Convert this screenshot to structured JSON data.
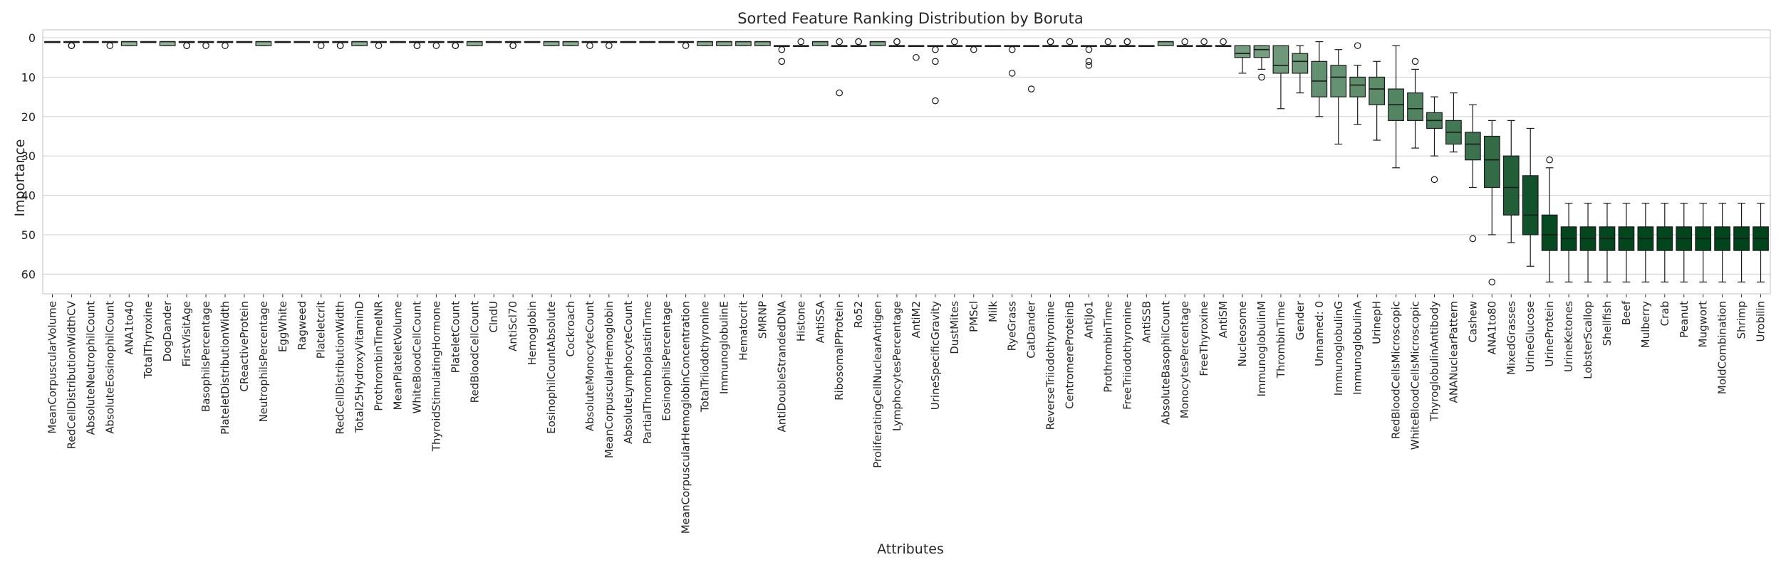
{
  "chart_data": {
    "type": "box",
    "title": "Sorted Feature Ranking Distribution by Boruta",
    "xlabel": "Attributes",
    "ylabel": "Importance",
    "ylim": [
      65,
      -2
    ],
    "y_inverted": true,
    "yticks": [
      0,
      10,
      20,
      30,
      40,
      50,
      60
    ],
    "grid": "horizontal",
    "color_scale": [
      "#e5f5e0",
      "#00441b"
    ],
    "categories": [
      "MeanCorpuscularVolume",
      "RedCellDistributionWidthCV",
      "AbsoluteNeutrophilCount",
      "AbsoluteEosinophilCount",
      "ANA1to40",
      "TotalThyroxine",
      "DogDander",
      "FirstVisitAge",
      "BasophilsPercentage",
      "PlateletDistributionWidth",
      "CReactiveProtein",
      "NeutrophilsPercentage",
      "EggWhite",
      "Ragweed",
      "Plateletcrit",
      "RedCellDistributionWidth",
      "Total25HydroxyVitaminD",
      "ProthrombinTimeINR",
      "MeanPlateletVolume",
      "WhiteBloodCellCount",
      "ThyroidStimulatingHormone",
      "PlateletCount",
      "RedBloodCellCount",
      "ClndU",
      "AntiScl70",
      "Hemoglobin",
      "EosinophilCountAbsolute",
      "Cockroach",
      "AbsoluteMonocyteCount",
      "MeanCorpuscularHemoglobin",
      "AbsoluteLymphocyteCount",
      "PartialThromboplastinTime",
      "EosinophilsPercentage",
      "MeanCorpuscularHemoglobinConcentration",
      "TotalTriiodothyronine",
      "ImmunoglobulinE",
      "Hematocrit",
      "SMRNP",
      "AntiDoubleStrandedDNA",
      "Histone",
      "AntiSSA",
      "RibosomalPProtein",
      "Ro52",
      "ProliferatingCellNuclearAntigen",
      "LymphocytesPercentage",
      "AntiM2",
      "UrineSpecificGravity",
      "DustMites",
      "PMScl",
      "Milk",
      "RyeGrass",
      "CatDander",
      "ReverseTriiodothyronine",
      "CentromereProteinB",
      "AntiJo1",
      "ProthrombinTime",
      "FreeTriiodothyronine",
      "AntiSSB",
      "AbsoluteBasophilCount",
      "MonocytesPercentage",
      "FreeThyroxine",
      "AntiSM",
      "Nucleosome",
      "ImmunoglobulinM",
      "ThrombinTime",
      "Gender",
      "Unnamed: 0",
      "ImmunoglobulinG",
      "ImmunoglobulinA",
      "UrinepH",
      "RedBloodCellsMicroscopic",
      "WhiteBloodCellsMicroscopic",
      "ThyroglobulinAntibody",
      "ANANuclearPattern",
      "Cashew",
      "ANA1to80",
      "MixedGrasses",
      "UrineGlucose",
      "UrineProtein",
      "UrineKetones",
      "LobsterScallop",
      "Shellfish",
      "Beef",
      "Mulberry",
      "Crab",
      "Peanut",
      "Mugwort",
      "MoldCombination",
      "Shrimp",
      "Urobilin"
    ],
    "boxes": [
      {
        "q1": 1,
        "med": 1,
        "q3": 1,
        "wl": 1,
        "wh": 1,
        "out": []
      },
      {
        "q1": 1,
        "med": 1,
        "q3": 1,
        "wl": 1,
        "wh": 1,
        "out": [
          2,
          2,
          2
        ]
      },
      {
        "q1": 1,
        "med": 1,
        "q3": 1,
        "wl": 1,
        "wh": 1,
        "out": []
      },
      {
        "q1": 1,
        "med": 1,
        "q3": 1,
        "wl": 1,
        "wh": 1,
        "out": [
          2
        ]
      },
      {
        "q1": 1,
        "med": 1,
        "q3": 2,
        "wl": 1,
        "wh": 2,
        "out": []
      },
      {
        "q1": 1,
        "med": 1,
        "q3": 1,
        "wl": 1,
        "wh": 1,
        "out": []
      },
      {
        "q1": 1,
        "med": 1,
        "q3": 2,
        "wl": 1,
        "wh": 2,
        "out": []
      },
      {
        "q1": 1,
        "med": 1,
        "q3": 1,
        "wl": 1,
        "wh": 1,
        "out": [
          2,
          2
        ]
      },
      {
        "q1": 1,
        "med": 1,
        "q3": 1,
        "wl": 1,
        "wh": 1,
        "out": [
          2
        ]
      },
      {
        "q1": 1,
        "med": 1,
        "q3": 1,
        "wl": 1,
        "wh": 1,
        "out": [
          2
        ]
      },
      {
        "q1": 1,
        "med": 1,
        "q3": 1,
        "wl": 1,
        "wh": 1,
        "out": []
      },
      {
        "q1": 1,
        "med": 1,
        "q3": 2,
        "wl": 1,
        "wh": 2,
        "out": []
      },
      {
        "q1": 1,
        "med": 1,
        "q3": 1,
        "wl": 1,
        "wh": 1,
        "out": []
      },
      {
        "q1": 1,
        "med": 1,
        "q3": 1,
        "wl": 1,
        "wh": 1,
        "out": []
      },
      {
        "q1": 1,
        "med": 1,
        "q3": 1,
        "wl": 1,
        "wh": 1,
        "out": [
          2
        ]
      },
      {
        "q1": 1,
        "med": 1,
        "q3": 1,
        "wl": 1,
        "wh": 1,
        "out": [
          2,
          2
        ]
      },
      {
        "q1": 1,
        "med": 1,
        "q3": 2,
        "wl": 1,
        "wh": 2,
        "out": []
      },
      {
        "q1": 1,
        "med": 1,
        "q3": 1,
        "wl": 1,
        "wh": 1,
        "out": [
          2
        ]
      },
      {
        "q1": 1,
        "med": 1,
        "q3": 1,
        "wl": 1,
        "wh": 1,
        "out": []
      },
      {
        "q1": 1,
        "med": 1,
        "q3": 1,
        "wl": 1,
        "wh": 1,
        "out": [
          2,
          2
        ]
      },
      {
        "q1": 1,
        "med": 1,
        "q3": 1,
        "wl": 1,
        "wh": 1,
        "out": [
          2
        ]
      },
      {
        "q1": 1,
        "med": 1,
        "q3": 1,
        "wl": 1,
        "wh": 1,
        "out": [
          2,
          2
        ]
      },
      {
        "q1": 1,
        "med": 1,
        "q3": 2,
        "wl": 1,
        "wh": 2,
        "out": []
      },
      {
        "q1": 1,
        "med": 1,
        "q3": 1,
        "wl": 1,
        "wh": 1,
        "out": []
      },
      {
        "q1": 1,
        "med": 1,
        "q3": 1,
        "wl": 1,
        "wh": 1,
        "out": [
          2,
          2
        ]
      },
      {
        "q1": 1,
        "med": 1,
        "q3": 1,
        "wl": 1,
        "wh": 1,
        "out": []
      },
      {
        "q1": 1,
        "med": 1,
        "q3": 2,
        "wl": 1,
        "wh": 2,
        "out": []
      },
      {
        "q1": 1,
        "med": 1,
        "q3": 2,
        "wl": 1,
        "wh": 2,
        "out": []
      },
      {
        "q1": 1,
        "med": 1,
        "q3": 1,
        "wl": 1,
        "wh": 1,
        "out": [
          2
        ]
      },
      {
        "q1": 1,
        "med": 1,
        "q3": 1,
        "wl": 1,
        "wh": 1,
        "out": [
          2
        ]
      },
      {
        "q1": 1,
        "med": 1,
        "q3": 1,
        "wl": 1,
        "wh": 1,
        "out": []
      },
      {
        "q1": 1,
        "med": 1,
        "q3": 1,
        "wl": 1,
        "wh": 1,
        "out": []
      },
      {
        "q1": 1,
        "med": 1,
        "q3": 1,
        "wl": 1,
        "wh": 1,
        "out": []
      },
      {
        "q1": 1,
        "med": 1,
        "q3": 1,
        "wl": 1,
        "wh": 1,
        "out": [
          2
        ]
      },
      {
        "q1": 1,
        "med": 1,
        "q3": 2,
        "wl": 1,
        "wh": 2,
        "out": []
      },
      {
        "q1": 1,
        "med": 1,
        "q3": 2,
        "wl": 1,
        "wh": 2,
        "out": []
      },
      {
        "q1": 1,
        "med": 1,
        "q3": 2,
        "wl": 1,
        "wh": 2,
        "out": []
      },
      {
        "q1": 1,
        "med": 1,
        "q3": 2,
        "wl": 1,
        "wh": 2,
        "out": []
      },
      {
        "q1": 2,
        "med": 2,
        "q3": 2,
        "wl": 2,
        "wh": 2,
        "out": [
          3,
          6
        ]
      },
      {
        "q1": 2,
        "med": 2,
        "q3": 2,
        "wl": 2,
        "wh": 2,
        "out": [
          1
        ]
      },
      {
        "q1": 1,
        "med": 1,
        "q3": 2,
        "wl": 1,
        "wh": 2,
        "out": []
      },
      {
        "q1": 2,
        "med": 2,
        "q3": 2,
        "wl": 2,
        "wh": 2,
        "out": [
          1,
          14
        ]
      },
      {
        "q1": 2,
        "med": 2,
        "q3": 2,
        "wl": 2,
        "wh": 2,
        "out": [
          1,
          1
        ]
      },
      {
        "q1": 1,
        "med": 1,
        "q3": 2,
        "wl": 1,
        "wh": 2,
        "out": []
      },
      {
        "q1": 2,
        "med": 2,
        "q3": 2,
        "wl": 2,
        "wh": 2,
        "out": [
          1,
          1
        ]
      },
      {
        "q1": 2,
        "med": 2,
        "q3": 2,
        "wl": 2,
        "wh": 2,
        "out": [
          5
        ]
      },
      {
        "q1": 2,
        "med": 2,
        "q3": 2,
        "wl": 2,
        "wh": 2,
        "out": [
          3,
          6,
          16
        ]
      },
      {
        "q1": 2,
        "med": 2,
        "q3": 2,
        "wl": 2,
        "wh": 2,
        "out": [
          1
        ]
      },
      {
        "q1": 2,
        "med": 2,
        "q3": 2,
        "wl": 2,
        "wh": 2,
        "out": [
          3
        ]
      },
      {
        "q1": 2,
        "med": 2,
        "q3": 2,
        "wl": 2,
        "wh": 2,
        "out": []
      },
      {
        "q1": 2,
        "med": 2,
        "q3": 2,
        "wl": 2,
        "wh": 2,
        "out": [
          3,
          9
        ]
      },
      {
        "q1": 2,
        "med": 2,
        "q3": 2,
        "wl": 2,
        "wh": 2,
        "out": [
          13
        ]
      },
      {
        "q1": 2,
        "med": 2,
        "q3": 2,
        "wl": 2,
        "wh": 2,
        "out": [
          1,
          1
        ]
      },
      {
        "q1": 2,
        "med": 2,
        "q3": 2,
        "wl": 2,
        "wh": 2,
        "out": [
          1
        ]
      },
      {
        "q1": 2,
        "med": 2,
        "q3": 2,
        "wl": 2,
        "wh": 2,
        "out": [
          3,
          6,
          7
        ]
      },
      {
        "q1": 2,
        "med": 2,
        "q3": 2,
        "wl": 2,
        "wh": 2,
        "out": [
          1
        ]
      },
      {
        "q1": 2,
        "med": 2,
        "q3": 2,
        "wl": 2,
        "wh": 2,
        "out": [
          1,
          1
        ]
      },
      {
        "q1": 2,
        "med": 2,
        "q3": 2,
        "wl": 2,
        "wh": 2,
        "out": []
      },
      {
        "q1": 1,
        "med": 1,
        "q3": 2,
        "wl": 1,
        "wh": 2,
        "out": []
      },
      {
        "q1": 2,
        "med": 2,
        "q3": 2,
        "wl": 2,
        "wh": 2,
        "out": [
          1
        ]
      },
      {
        "q1": 2,
        "med": 2,
        "q3": 2,
        "wl": 2,
        "wh": 2,
        "out": [
          1
        ]
      },
      {
        "q1": 2,
        "med": 2,
        "q3": 2,
        "wl": 2,
        "wh": 2,
        "out": [
          1
        ]
      },
      {
        "q1": 2,
        "med": 4,
        "q3": 5,
        "wl": 2,
        "wh": 9,
        "out": []
      },
      {
        "q1": 2,
        "med": 3,
        "q3": 5,
        "wl": 2,
        "wh": 8,
        "out": [
          10
        ]
      },
      {
        "q1": 2,
        "med": 7,
        "q3": 9,
        "wl": 2,
        "wh": 18,
        "out": []
      },
      {
        "q1": 4,
        "med": 6,
        "q3": 9,
        "wl": 2,
        "wh": 14,
        "out": []
      },
      {
        "q1": 6,
        "med": 11,
        "q3": 15,
        "wl": 1,
        "wh": 20,
        "out": []
      },
      {
        "q1": 7,
        "med": 10,
        "q3": 15,
        "wl": 3,
        "wh": 27,
        "out": []
      },
      {
        "q1": 10,
        "med": 12,
        "q3": 15,
        "wl": 7,
        "wh": 22,
        "out": [
          2
        ]
      },
      {
        "q1": 10,
        "med": 13,
        "q3": 17,
        "wl": 6,
        "wh": 26,
        "out": []
      },
      {
        "q1": 13,
        "med": 17,
        "q3": 21,
        "wl": 2,
        "wh": 33,
        "out": []
      },
      {
        "q1": 14,
        "med": 18,
        "q3": 21,
        "wl": 8,
        "wh": 28,
        "out": [
          6
        ]
      },
      {
        "q1": 19,
        "med": 21,
        "q3": 23,
        "wl": 15,
        "wh": 30,
        "out": [
          36
        ]
      },
      {
        "q1": 21,
        "med": 24,
        "q3": 27,
        "wl": 14,
        "wh": 29,
        "out": []
      },
      {
        "q1": 24,
        "med": 27,
        "q3": 31,
        "wl": 17,
        "wh": 38,
        "out": [
          51
        ]
      },
      {
        "q1": 25,
        "med": 31,
        "q3": 38,
        "wl": 21,
        "wh": 50,
        "out": [
          62
        ]
      },
      {
        "q1": 30,
        "med": 38,
        "q3": 45,
        "wl": 21,
        "wh": 52,
        "out": []
      },
      {
        "q1": 35,
        "med": 45,
        "q3": 50,
        "wl": 23,
        "wh": 58,
        "out": []
      },
      {
        "q1": 45,
        "med": 50,
        "q3": 54,
        "wl": 33,
        "wh": 62,
        "out": [
          31
        ]
      },
      {
        "q1": 48,
        "med": 51,
        "q3": 54,
        "wl": 42,
        "wh": 62,
        "out": []
      },
      {
        "q1": 48,
        "med": 51,
        "q3": 54,
        "wl": 42,
        "wh": 62,
        "out": []
      },
      {
        "q1": 48,
        "med": 51,
        "q3": 54,
        "wl": 42,
        "wh": 62,
        "out": []
      },
      {
        "q1": 48,
        "med": 51,
        "q3": 54,
        "wl": 42,
        "wh": 62,
        "out": []
      },
      {
        "q1": 48,
        "med": 51,
        "q3": 54,
        "wl": 42,
        "wh": 62,
        "out": []
      },
      {
        "q1": 48,
        "med": 51,
        "q3": 54,
        "wl": 42,
        "wh": 62,
        "out": []
      },
      {
        "q1": 48,
        "med": 51,
        "q3": 54,
        "wl": 42,
        "wh": 62,
        "out": []
      },
      {
        "q1": 48,
        "med": 51,
        "q3": 54,
        "wl": 42,
        "wh": 62,
        "out": []
      },
      {
        "q1": 48,
        "med": 51,
        "q3": 54,
        "wl": 42,
        "wh": 62,
        "out": []
      },
      {
        "q1": 48,
        "med": 51,
        "q3": 54,
        "wl": 42,
        "wh": 62,
        "out": []
      },
      {
        "q1": 48,
        "med": 51,
        "q3": 54,
        "wl": 42,
        "wh": 62,
        "out": []
      }
    ]
  }
}
